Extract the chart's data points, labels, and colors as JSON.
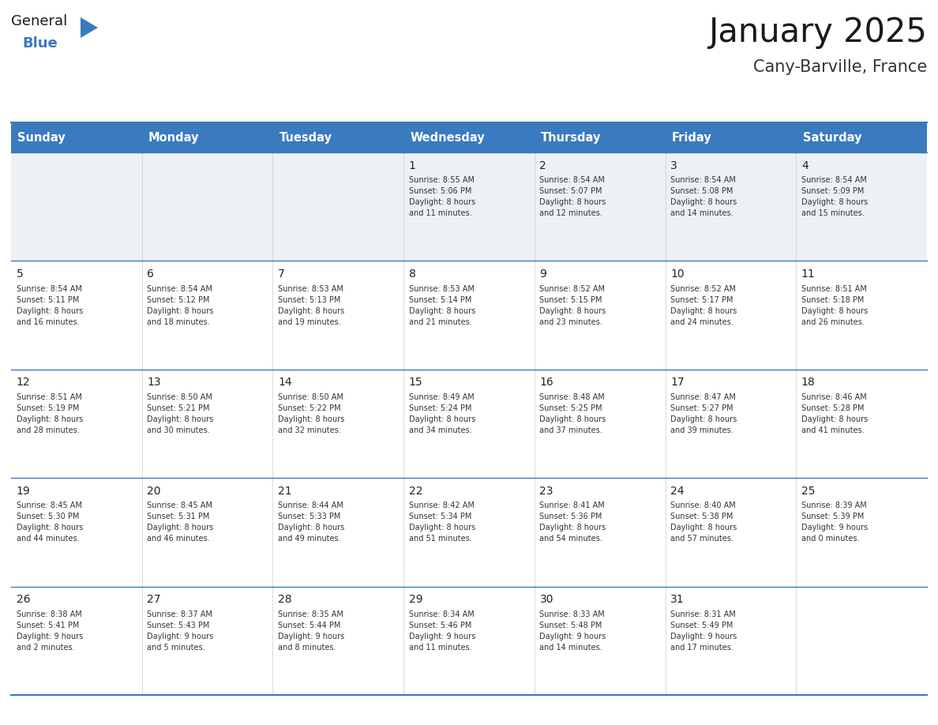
{
  "title": "January 2025",
  "subtitle": "Cany-Barville, France",
  "header_color": "#3a7abf",
  "header_text_color": "#ffffff",
  "row1_bg_color": "#edf0f5",
  "cell_bg_color": "#ffffff",
  "border_color": "#3a7abf",
  "days_of_week": [
    "Sunday",
    "Monday",
    "Tuesday",
    "Wednesday",
    "Thursday",
    "Friday",
    "Saturday"
  ],
  "title_color": "#1a1a1a",
  "subtitle_color": "#333333",
  "day_num_color": "#222222",
  "text_color": "#333333",
  "calendar_data": [
    [
      {
        "day": null,
        "info": null
      },
      {
        "day": null,
        "info": null
      },
      {
        "day": null,
        "info": null
      },
      {
        "day": "1",
        "info": "Sunrise: 8:55 AM\nSunset: 5:06 PM\nDaylight: 8 hours\nand 11 minutes."
      },
      {
        "day": "2",
        "info": "Sunrise: 8:54 AM\nSunset: 5:07 PM\nDaylight: 8 hours\nand 12 minutes."
      },
      {
        "day": "3",
        "info": "Sunrise: 8:54 AM\nSunset: 5:08 PM\nDaylight: 8 hours\nand 14 minutes."
      },
      {
        "day": "4",
        "info": "Sunrise: 8:54 AM\nSunset: 5:09 PM\nDaylight: 8 hours\nand 15 minutes."
      }
    ],
    [
      {
        "day": "5",
        "info": "Sunrise: 8:54 AM\nSunset: 5:11 PM\nDaylight: 8 hours\nand 16 minutes."
      },
      {
        "day": "6",
        "info": "Sunrise: 8:54 AM\nSunset: 5:12 PM\nDaylight: 8 hours\nand 18 minutes."
      },
      {
        "day": "7",
        "info": "Sunrise: 8:53 AM\nSunset: 5:13 PM\nDaylight: 8 hours\nand 19 minutes."
      },
      {
        "day": "8",
        "info": "Sunrise: 8:53 AM\nSunset: 5:14 PM\nDaylight: 8 hours\nand 21 minutes."
      },
      {
        "day": "9",
        "info": "Sunrise: 8:52 AM\nSunset: 5:15 PM\nDaylight: 8 hours\nand 23 minutes."
      },
      {
        "day": "10",
        "info": "Sunrise: 8:52 AM\nSunset: 5:17 PM\nDaylight: 8 hours\nand 24 minutes."
      },
      {
        "day": "11",
        "info": "Sunrise: 8:51 AM\nSunset: 5:18 PM\nDaylight: 8 hours\nand 26 minutes."
      }
    ],
    [
      {
        "day": "12",
        "info": "Sunrise: 8:51 AM\nSunset: 5:19 PM\nDaylight: 8 hours\nand 28 minutes."
      },
      {
        "day": "13",
        "info": "Sunrise: 8:50 AM\nSunset: 5:21 PM\nDaylight: 8 hours\nand 30 minutes."
      },
      {
        "day": "14",
        "info": "Sunrise: 8:50 AM\nSunset: 5:22 PM\nDaylight: 8 hours\nand 32 minutes."
      },
      {
        "day": "15",
        "info": "Sunrise: 8:49 AM\nSunset: 5:24 PM\nDaylight: 8 hours\nand 34 minutes."
      },
      {
        "day": "16",
        "info": "Sunrise: 8:48 AM\nSunset: 5:25 PM\nDaylight: 8 hours\nand 37 minutes."
      },
      {
        "day": "17",
        "info": "Sunrise: 8:47 AM\nSunset: 5:27 PM\nDaylight: 8 hours\nand 39 minutes."
      },
      {
        "day": "18",
        "info": "Sunrise: 8:46 AM\nSunset: 5:28 PM\nDaylight: 8 hours\nand 41 minutes."
      }
    ],
    [
      {
        "day": "19",
        "info": "Sunrise: 8:45 AM\nSunset: 5:30 PM\nDaylight: 8 hours\nand 44 minutes."
      },
      {
        "day": "20",
        "info": "Sunrise: 8:45 AM\nSunset: 5:31 PM\nDaylight: 8 hours\nand 46 minutes."
      },
      {
        "day": "21",
        "info": "Sunrise: 8:44 AM\nSunset: 5:33 PM\nDaylight: 8 hours\nand 49 minutes."
      },
      {
        "day": "22",
        "info": "Sunrise: 8:42 AM\nSunset: 5:34 PM\nDaylight: 8 hours\nand 51 minutes."
      },
      {
        "day": "23",
        "info": "Sunrise: 8:41 AM\nSunset: 5:36 PM\nDaylight: 8 hours\nand 54 minutes."
      },
      {
        "day": "24",
        "info": "Sunrise: 8:40 AM\nSunset: 5:38 PM\nDaylight: 8 hours\nand 57 minutes."
      },
      {
        "day": "25",
        "info": "Sunrise: 8:39 AM\nSunset: 5:39 PM\nDaylight: 9 hours\nand 0 minutes."
      }
    ],
    [
      {
        "day": "26",
        "info": "Sunrise: 8:38 AM\nSunset: 5:41 PM\nDaylight: 9 hours\nand 2 minutes."
      },
      {
        "day": "27",
        "info": "Sunrise: 8:37 AM\nSunset: 5:43 PM\nDaylight: 9 hours\nand 5 minutes."
      },
      {
        "day": "28",
        "info": "Sunrise: 8:35 AM\nSunset: 5:44 PM\nDaylight: 9 hours\nand 8 minutes."
      },
      {
        "day": "29",
        "info": "Sunrise: 8:34 AM\nSunset: 5:46 PM\nDaylight: 9 hours\nand 11 minutes."
      },
      {
        "day": "30",
        "info": "Sunrise: 8:33 AM\nSunset: 5:48 PM\nDaylight: 9 hours\nand 14 minutes."
      },
      {
        "day": "31",
        "info": "Sunrise: 8:31 AM\nSunset: 5:49 PM\nDaylight: 9 hours\nand 17 minutes."
      },
      {
        "day": null,
        "info": null
      }
    ]
  ],
  "logo_text_general": "General",
  "logo_text_blue": "Blue",
  "logo_triangle_color": "#3a7abf",
  "logo_general_color": "#1a1a1a"
}
